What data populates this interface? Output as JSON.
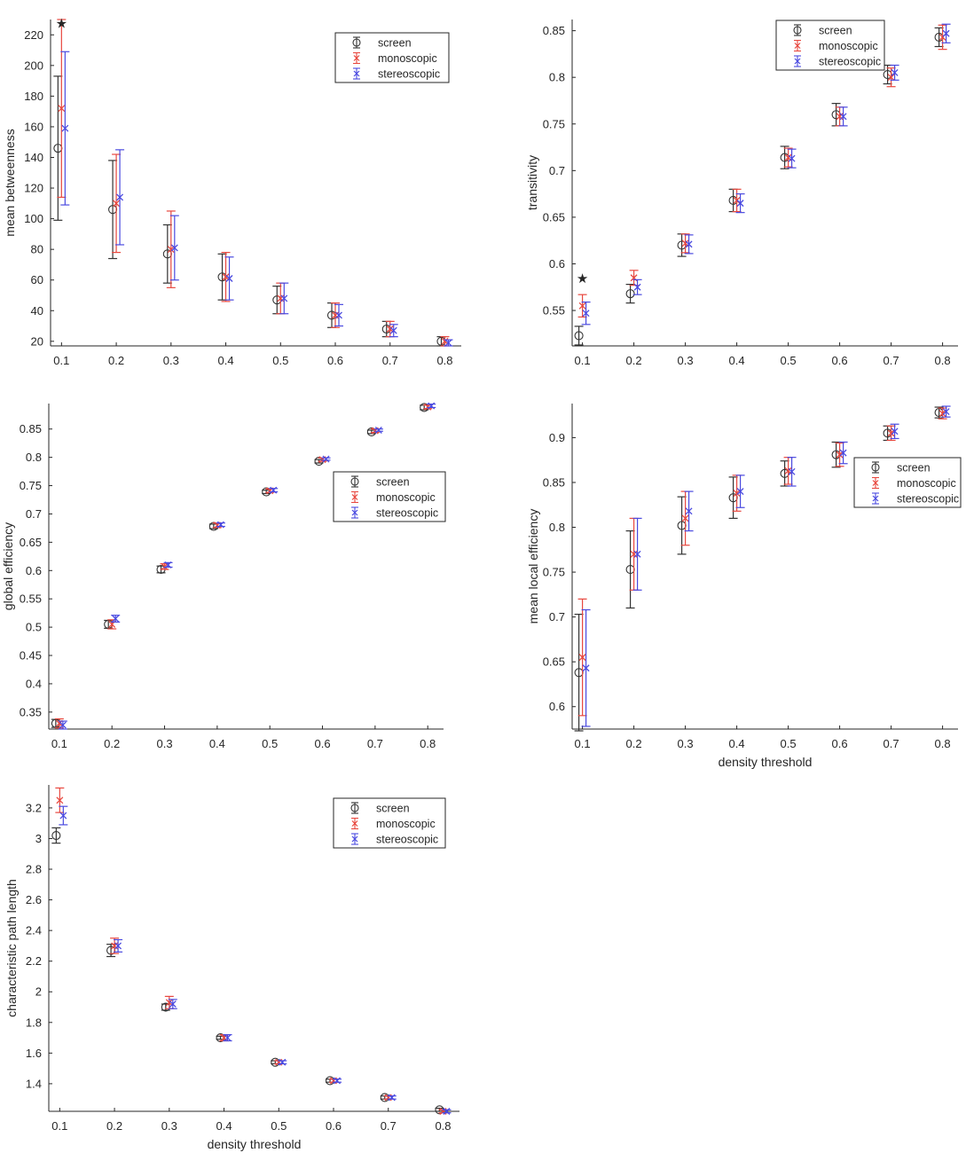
{
  "chart_data": [
    {
      "type": "scatter",
      "xlabel": "",
      "ylabel": "mean betweenness",
      "x": [
        0.1,
        0.2,
        0.3,
        0.4,
        0.5,
        0.6,
        0.7,
        0.8
      ],
      "xticks": [
        "0.1",
        "0.2",
        "0.3",
        "0.4",
        "0.5",
        "0.6",
        "0.7",
        "0.8"
      ],
      "yticks": [
        "20",
        "40",
        "60",
        "80",
        "100",
        "120",
        "140",
        "160",
        "180",
        "200",
        "220"
      ],
      "xlim": [
        0.08,
        0.83
      ],
      "ylim": [
        17,
        230
      ],
      "legend": "top-right",
      "significance": [
        {
          "x": 0.1,
          "y": 228,
          "label": "★"
        }
      ],
      "series": [
        {
          "name": "screen",
          "color": "#333333",
          "marker": "circle",
          "values": [
            146,
            106,
            77,
            62,
            47,
            37,
            28,
            20
          ],
          "err": [
            47,
            32,
            19,
            15,
            9,
            8,
            5,
            3
          ]
        },
        {
          "name": "monoscopic",
          "color": "#e8483f",
          "marker": "x",
          "values": [
            172,
            110,
            80,
            62,
            48,
            37,
            28,
            20
          ],
          "err": [
            58,
            32,
            25,
            16,
            10,
            8,
            5,
            3
          ]
        },
        {
          "name": "stereoscopic",
          "color": "#4a4ae0",
          "marker": "x",
          "values": [
            159,
            114,
            81,
            61,
            48,
            37,
            27,
            19
          ],
          "err": [
            50,
            31,
            21,
            14,
            10,
            7,
            4,
            2
          ]
        }
      ]
    },
    {
      "type": "scatter",
      "xlabel": "",
      "ylabel": "transitivity",
      "x": [
        0.1,
        0.2,
        0.3,
        0.4,
        0.5,
        0.6,
        0.7,
        0.8
      ],
      "xticks": [
        "0.1",
        "0.2",
        "0.3",
        "0.4",
        "0.5",
        "0.6",
        "0.7",
        "0.8"
      ],
      "yticks": [
        "0.55",
        "0.6",
        "0.65",
        "0.7",
        "0.75",
        "0.8",
        "0.85"
      ],
      "xlim": [
        0.08,
        0.83
      ],
      "ylim": [
        0.512,
        0.862
      ],
      "legend": "top-right",
      "significance": [
        {
          "x": 0.1,
          "y": 0.585,
          "label": "★"
        }
      ],
      "series": [
        {
          "name": "screen",
          "color": "#333333",
          "marker": "circle",
          "values": [
            0.523,
            0.568,
            0.62,
            0.668,
            0.714,
            0.76,
            0.803,
            0.843
          ],
          "err": [
            0.01,
            0.01,
            0.012,
            0.012,
            0.012,
            0.012,
            0.01,
            0.01
          ]
        },
        {
          "name": "monoscopic",
          "color": "#e8483f",
          "marker": "x",
          "values": [
            0.555,
            0.585,
            0.622,
            0.668,
            0.714,
            0.758,
            0.8,
            0.843
          ],
          "err": [
            0.012,
            0.008,
            0.01,
            0.012,
            0.01,
            0.01,
            0.01,
            0.013
          ]
        },
        {
          "name": "stereoscopic",
          "color": "#4a4ae0",
          "marker": "x",
          "values": [
            0.547,
            0.575,
            0.621,
            0.665,
            0.713,
            0.758,
            0.805,
            0.847
          ],
          "err": [
            0.012,
            0.008,
            0.01,
            0.01,
            0.01,
            0.01,
            0.008,
            0.01
          ]
        }
      ]
    },
    {
      "type": "scatter",
      "xlabel": "",
      "ylabel": "global efficiency",
      "x": [
        0.1,
        0.2,
        0.3,
        0.4,
        0.5,
        0.6,
        0.7,
        0.8
      ],
      "xticks": [
        "0.1",
        "0.2",
        "0.3",
        "0.4",
        "0.5",
        "0.6",
        "0.7",
        "0.8"
      ],
      "yticks": [
        "0.35",
        "0.4",
        "0.45",
        "0.5",
        "0.55",
        "0.6",
        "0.65",
        "0.7",
        "0.75",
        "0.8",
        "0.85"
      ],
      "xlim": [
        0.08,
        0.83
      ],
      "ylim": [
        0.32,
        0.895
      ],
      "legend": "middle-right",
      "series": [
        {
          "name": "screen",
          "color": "#333333",
          "marker": "circle",
          "values": [
            0.33,
            0.505,
            0.602,
            0.678,
            0.739,
            0.793,
            0.845,
            0.888
          ],
          "err": [
            0.007,
            0.007,
            0.006,
            0.004,
            0.003,
            0.003,
            0.003,
            0.004
          ]
        },
        {
          "name": "monoscopic",
          "color": "#e8483f",
          "marker": "x",
          "values": [
            0.33,
            0.505,
            0.607,
            0.68,
            0.741,
            0.796,
            0.847,
            0.889
          ],
          "err": [
            0.008,
            0.008,
            0.005,
            0.004,
            0.003,
            0.003,
            0.003,
            0.003
          ]
        },
        {
          "name": "stereoscopic",
          "color": "#4a4ae0",
          "marker": "x",
          "values": [
            0.327,
            0.515,
            0.61,
            0.681,
            0.742,
            0.797,
            0.848,
            0.891
          ],
          "err": [
            0.007,
            0.006,
            0.004,
            0.003,
            0.003,
            0.002,
            0.002,
            0.003
          ]
        }
      ]
    },
    {
      "type": "scatter",
      "xlabel": "density threshold",
      "ylabel": "mean local efficiency",
      "x": [
        0.1,
        0.2,
        0.3,
        0.4,
        0.5,
        0.6,
        0.7,
        0.8
      ],
      "xticks": [
        "0.1",
        "0.2",
        "0.3",
        "0.4",
        "0.5",
        "0.6",
        "0.7",
        "0.8"
      ],
      "yticks": [
        "0.6",
        "0.65",
        "0.7",
        "0.75",
        "0.8",
        "0.85",
        "0.9"
      ],
      "xlim": [
        0.08,
        0.83
      ],
      "ylim": [
        0.575,
        0.938
      ],
      "legend": "middle-right",
      "series": [
        {
          "name": "screen",
          "color": "#333333",
          "marker": "circle",
          "values": [
            0.638,
            0.753,
            0.802,
            0.833,
            0.86,
            0.881,
            0.905,
            0.928
          ],
          "err": [
            0.065,
            0.043,
            0.032,
            0.023,
            0.014,
            0.014,
            0.008,
            0.006
          ]
        },
        {
          "name": "monoscopic",
          "color": "#e8483f",
          "marker": "x",
          "values": [
            0.655,
            0.77,
            0.81,
            0.838,
            0.863,
            0.881,
            0.905,
            0.927
          ],
          "err": [
            0.065,
            0.04,
            0.03,
            0.02,
            0.015,
            0.013,
            0.008,
            0.006
          ]
        },
        {
          "name": "stereoscopic",
          "color": "#4a4ae0",
          "marker": "x",
          "values": [
            0.643,
            0.77,
            0.818,
            0.84,
            0.862,
            0.883,
            0.907,
            0.929
          ],
          "err": [
            0.065,
            0.04,
            0.022,
            0.018,
            0.016,
            0.012,
            0.008,
            0.006
          ]
        }
      ]
    },
    {
      "type": "scatter",
      "xlabel": "density threshold",
      "ylabel": "characteristic path length",
      "x": [
        0.1,
        0.2,
        0.3,
        0.4,
        0.5,
        0.6,
        0.7,
        0.8
      ],
      "xticks": [
        "0.1",
        "0.2",
        "0.3",
        "0.4",
        "0.5",
        "0.6",
        "0.7",
        "0.8"
      ],
      "yticks": [
        "1.4",
        "1.6",
        "1.8",
        "2",
        "2.2",
        "2.4",
        "2.6",
        "2.8",
        "3",
        "3.2"
      ],
      "xlim": [
        0.08,
        0.83
      ],
      "ylim": [
        1.22,
        3.35
      ],
      "legend": "top-right",
      "series": [
        {
          "name": "screen",
          "color": "#333333",
          "marker": "circle",
          "values": [
            3.02,
            2.27,
            1.9,
            1.7,
            1.54,
            1.42,
            1.31,
            1.23
          ],
          "err": [
            0.05,
            0.04,
            0.02,
            0.01,
            0.01,
            0.01,
            0.01,
            0.01
          ]
        },
        {
          "name": "monoscopic",
          "color": "#e8483f",
          "marker": "x",
          "values": [
            3.25,
            2.3,
            1.93,
            1.7,
            1.54,
            1.42,
            1.31,
            1.22
          ],
          "err": [
            0.08,
            0.05,
            0.04,
            0.02,
            0.01,
            0.01,
            0.01,
            0.01
          ]
        },
        {
          "name": "stereoscopic",
          "color": "#4a4ae0",
          "marker": "x",
          "values": [
            3.15,
            2.3,
            1.92,
            1.7,
            1.54,
            1.42,
            1.31,
            1.22
          ],
          "err": [
            0.06,
            0.04,
            0.03,
            0.02,
            0.01,
            0.01,
            0.01,
            0.01
          ]
        }
      ]
    }
  ]
}
